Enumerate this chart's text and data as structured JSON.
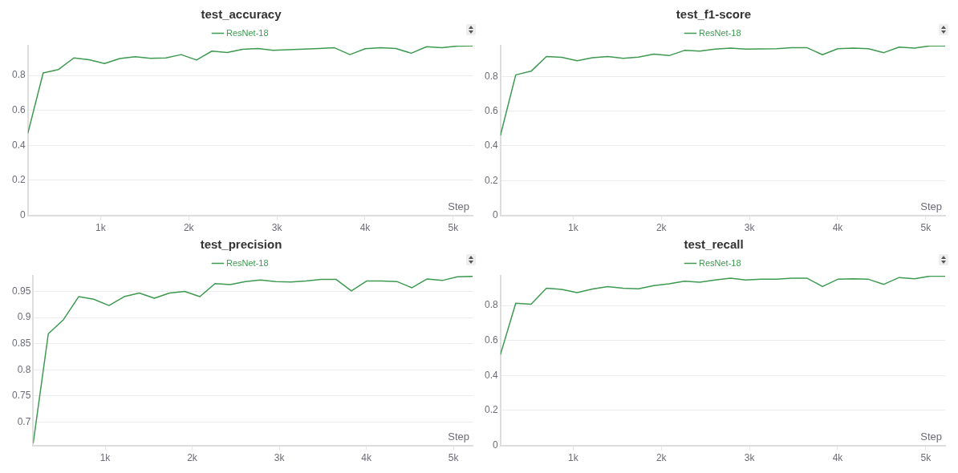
{
  "chart_data": [
    {
      "type": "line",
      "title": "test_accuracy",
      "xlabel": "Step",
      "x": [
        174,
        348,
        522,
        696,
        870,
        1044,
        1218,
        1392,
        1566,
        1740,
        1914,
        2088,
        2262,
        2436,
        2610,
        2784,
        2958,
        3132,
        3306,
        3480,
        3654,
        3828,
        4002,
        4176,
        4350,
        4524,
        4698,
        4872,
        5046,
        5220
      ],
      "series": [
        {
          "name": "ResNet-18",
          "color": "#3d9a50",
          "values": [
            0.469,
            0.814,
            0.834,
            0.9,
            0.89,
            0.868,
            0.897,
            0.907,
            0.898,
            0.9,
            0.919,
            0.888,
            0.939,
            0.931,
            0.949,
            0.954,
            0.944,
            0.947,
            0.951,
            0.954,
            0.958,
            0.919,
            0.953,
            0.958,
            0.954,
            0.927,
            0.964,
            0.958,
            0.968,
            0.969
          ]
        }
      ],
      "xlim": [
        174,
        5220
      ],
      "xticks": [
        {
          "value": 1000,
          "label": "1k"
        },
        {
          "value": 2000,
          "label": "2k"
        },
        {
          "value": 3000,
          "label": "3k"
        },
        {
          "value": 4000,
          "label": "4k"
        },
        {
          "value": 5000,
          "label": "5k"
        }
      ],
      "ylim": [
        0,
        0.97
      ],
      "yticks": [
        0,
        0.2,
        0.4,
        0.6,
        0.8
      ],
      "grid": "y",
      "legend": "top",
      "marker": "none",
      "line_style": "solid"
    },
    {
      "type": "line",
      "title": "test_f1-score",
      "xlabel": "Step",
      "x": [
        174,
        348,
        522,
        696,
        870,
        1044,
        1218,
        1392,
        1566,
        1740,
        1914,
        2088,
        2262,
        2436,
        2610,
        2784,
        2958,
        3132,
        3306,
        3480,
        3654,
        3828,
        4002,
        4176,
        4350,
        4524,
        4698,
        4872,
        5046,
        5220
      ],
      "series": [
        {
          "name": "ResNet-18",
          "color": "#3d9a50",
          "values": [
            0.46,
            0.809,
            0.83,
            0.915,
            0.91,
            0.89,
            0.908,
            0.915,
            0.904,
            0.911,
            0.929,
            0.92,
            0.95,
            0.946,
            0.957,
            0.963,
            0.957,
            0.958,
            0.96,
            0.965,
            0.965,
            0.925,
            0.96,
            0.963,
            0.96,
            0.937,
            0.969,
            0.963,
            0.976,
            0.976
          ]
        }
      ],
      "xlim": [
        174,
        5220
      ],
      "xticks": [
        {
          "value": 1000,
          "label": "1k"
        },
        {
          "value": 2000,
          "label": "2k"
        },
        {
          "value": 3000,
          "label": "3k"
        },
        {
          "value": 4000,
          "label": "4k"
        },
        {
          "value": 5000,
          "label": "5k"
        }
      ],
      "ylim": [
        0,
        0.977
      ],
      "yticks": [
        0,
        0.2,
        0.4,
        0.6,
        0.8
      ],
      "grid": "y",
      "legend": "top",
      "marker": "none",
      "line_style": "solid"
    },
    {
      "type": "line",
      "title": "test_precision",
      "xlabel": "Step",
      "x": [
        174,
        348,
        522,
        696,
        870,
        1044,
        1218,
        1392,
        1566,
        1740,
        1914,
        2088,
        2262,
        2436,
        2610,
        2784,
        2958,
        3132,
        3306,
        3480,
        3654,
        3828,
        4002,
        4176,
        4350,
        4524,
        4698,
        4872,
        5046,
        5220
      ],
      "series": [
        {
          "name": "ResNet-18",
          "color": "#3d9a50",
          "values": [
            0.659,
            0.869,
            0.896,
            0.94,
            0.935,
            0.923,
            0.94,
            0.947,
            0.937,
            0.947,
            0.95,
            0.94,
            0.965,
            0.963,
            0.969,
            0.972,
            0.969,
            0.968,
            0.97,
            0.973,
            0.973,
            0.951,
            0.97,
            0.97,
            0.969,
            0.957,
            0.974,
            0.971,
            0.978,
            0.979
          ]
        }
      ],
      "xlim": [
        174,
        5220
      ],
      "xticks": [
        {
          "value": 1000,
          "label": "1k"
        },
        {
          "value": 2000,
          "label": "2k"
        },
        {
          "value": 3000,
          "label": "3k"
        },
        {
          "value": 4000,
          "label": "4k"
        },
        {
          "value": 5000,
          "label": "5k"
        }
      ],
      "ylim": [
        0.655,
        0.98
      ],
      "yticks": [
        0.7,
        0.75,
        0.8,
        0.85,
        0.9,
        0.95
      ],
      "grid": "y",
      "legend": "top",
      "marker": "none",
      "line_style": "solid"
    },
    {
      "type": "line",
      "title": "test_recall",
      "xlabel": "Step",
      "x": [
        174,
        348,
        522,
        696,
        870,
        1044,
        1218,
        1392,
        1566,
        1740,
        1914,
        2088,
        2262,
        2436,
        2610,
        2784,
        2958,
        3132,
        3306,
        3480,
        3654,
        3828,
        4002,
        4176,
        4350,
        4524,
        4698,
        4872,
        5046,
        5220
      ],
      "series": [
        {
          "name": "ResNet-18",
          "color": "#3d9a50",
          "values": [
            0.519,
            0.813,
            0.807,
            0.899,
            0.892,
            0.874,
            0.894,
            0.908,
            0.899,
            0.896,
            0.914,
            0.924,
            0.939,
            0.933,
            0.946,
            0.956,
            0.946,
            0.95,
            0.951,
            0.956,
            0.956,
            0.909,
            0.95,
            0.953,
            0.95,
            0.921,
            0.96,
            0.953,
            0.968,
            0.968
          ]
        }
      ],
      "xlim": [
        174,
        5220
      ],
      "xticks": [
        {
          "value": 1000,
          "label": "1k"
        },
        {
          "value": 2000,
          "label": "2k"
        },
        {
          "value": 3000,
          "label": "3k"
        },
        {
          "value": 4000,
          "label": "4k"
        },
        {
          "value": 5000,
          "label": "5k"
        }
      ],
      "ylim": [
        0,
        0.97
      ],
      "yticks": [
        0,
        0.2,
        0.4,
        0.6,
        0.8
      ],
      "grid": "y",
      "legend": "top",
      "marker": "none",
      "line_style": "solid"
    }
  ]
}
